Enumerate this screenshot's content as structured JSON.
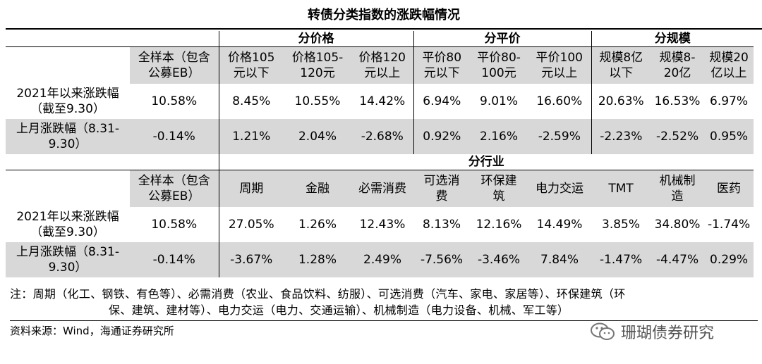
{
  "title": "转债分类指数的涨跌幅情况",
  "section1": {
    "groups": [
      "分价格",
      "分平价",
      "分规模"
    ],
    "headers": [
      [
        "全样本（包含",
        "公募EB）"
      ],
      [
        "价格105",
        "元以下"
      ],
      [
        "价格105-",
        "120元"
      ],
      [
        "价格120",
        "元以上"
      ],
      [
        "平价80",
        "元以下"
      ],
      [
        "平价80-",
        "100元"
      ],
      [
        "平价100",
        "元以上"
      ],
      [
        "规模8亿",
        "以下"
      ],
      [
        "规模8-",
        "20亿"
      ],
      [
        "规模20",
        "亿以上"
      ]
    ],
    "row1": {
      "label": [
        "2021年以来涨跌幅",
        "（截至9.30）"
      ],
      "values": [
        "10.58%",
        "8.45%",
        "10.55%",
        "14.42%",
        "6.94%",
        "9.01%",
        "16.60%",
        "20.63%",
        "16.53%",
        "6.97%"
      ]
    },
    "row2": {
      "label": [
        "上月涨跌幅（8.31-",
        "9.30）"
      ],
      "values": [
        "-0.14%",
        "1.21%",
        "2.04%",
        "-2.68%",
        "0.92%",
        "2.16%",
        "-2.59%",
        "-2.23%",
        "-2.52%",
        "0.95%"
      ]
    }
  },
  "section2": {
    "group": "分行业",
    "headers": [
      [
        "全样本（包含",
        "公募EB）"
      ],
      [
        "周期",
        ""
      ],
      [
        "金融",
        ""
      ],
      [
        "必需消费",
        ""
      ],
      [
        "可选消",
        "费"
      ],
      [
        "环保建",
        "筑"
      ],
      [
        "电力交运",
        ""
      ],
      [
        "TMT",
        ""
      ],
      [
        "机械制",
        "造"
      ],
      [
        "医药",
        ""
      ]
    ],
    "row1": {
      "label": [
        "2021年以来涨跌幅",
        "（截至9.30）"
      ],
      "values": [
        "10.58%",
        "27.05%",
        "1.26%",
        "12.43%",
        "8.13%",
        "12.16%",
        "14.49%",
        "3.85%",
        "34.80%",
        "-1.74%"
      ]
    },
    "row2": {
      "label": [
        "上月涨跌幅（8.31-",
        "9.30）"
      ],
      "values": [
        "-0.14%",
        "-3.67%",
        "1.28%",
        "2.49%",
        "-7.56%",
        "-3.46%",
        "7.84%",
        "-1.47%",
        "-4.47%",
        "0.29%"
      ]
    }
  },
  "note": {
    "line1": "注：周期（化工、钢铁、有色等）、必需消费（农业、食品饮料、纺服）、可选消费（汽车、家电、家居等）、环保建筑（环",
    "line2": "保、建筑、建材等）、电力交运（电力、交通运输）、机械制造（电力设备、机械、军工等）"
  },
  "source": "资料来源：Wind，海通证券研究所",
  "brand": {
    "icon": "wechat-icon",
    "text": "珊瑚债券研究"
  }
}
